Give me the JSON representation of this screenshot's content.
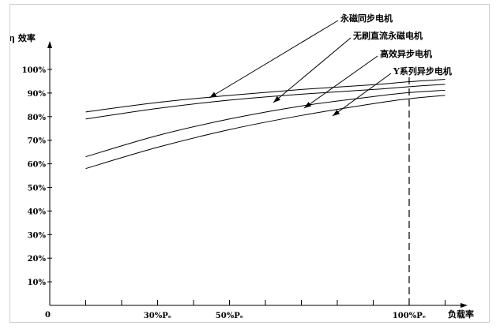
{
  "chart_data": {
    "type": "line",
    "ylabel": "η 效率",
    "xlabel": "负载率",
    "origin_label": "0",
    "ylim": [
      0,
      100
    ],
    "xlim": [
      0,
      130
    ],
    "y_ticks": [
      {
        "value": 10,
        "label": "10%"
      },
      {
        "value": 20,
        "label": "20%"
      },
      {
        "value": 30,
        "label": "30%"
      },
      {
        "value": 40,
        "label": "40%"
      },
      {
        "value": 50,
        "label": "50%"
      },
      {
        "value": 60,
        "label": "60%"
      },
      {
        "value": 70,
        "label": "70%"
      },
      {
        "value": 80,
        "label": "80%"
      },
      {
        "value": 90,
        "label": "90%"
      },
      {
        "value": 100,
        "label": "100%"
      }
    ],
    "x_tick_marks": [
      10,
      20,
      30,
      40,
      50,
      60,
      70,
      80,
      90,
      100,
      110
    ],
    "x_tick_labels": [
      {
        "value": 30,
        "label": "30%Pₑ"
      },
      {
        "value": 50,
        "label": "50%Pₑ"
      },
      {
        "value": 100,
        "label": "100%Pₑ"
      }
    ],
    "reference_line": {
      "x": 100,
      "style": "dashed"
    },
    "grid": false,
    "series": [
      {
        "name": "永磁同步电机",
        "x": [
          10,
          30,
          50,
          70,
          90,
          100,
          110
        ],
        "values": [
          82,
          86,
          89,
          91.5,
          93.5,
          94.8,
          95.8
        ]
      },
      {
        "name": "无刷直流永磁电机",
        "x": [
          10,
          30,
          50,
          70,
          90,
          100,
          110
        ],
        "values": [
          79,
          83.5,
          87,
          89.5,
          91.5,
          92.7,
          93.7
        ]
      },
      {
        "name": "高效异步电机",
        "x": [
          10,
          30,
          50,
          70,
          90,
          100,
          110
        ],
        "values": [
          63,
          72,
          79,
          84.5,
          88.5,
          90.2,
          91.2
        ]
      },
      {
        "name": "Y系列异步电机",
        "x": [
          10,
          30,
          50,
          70,
          90,
          100,
          110
        ],
        "values": [
          58,
          67,
          74.5,
          80.5,
          85.5,
          87.6,
          89
        ]
      }
    ]
  }
}
